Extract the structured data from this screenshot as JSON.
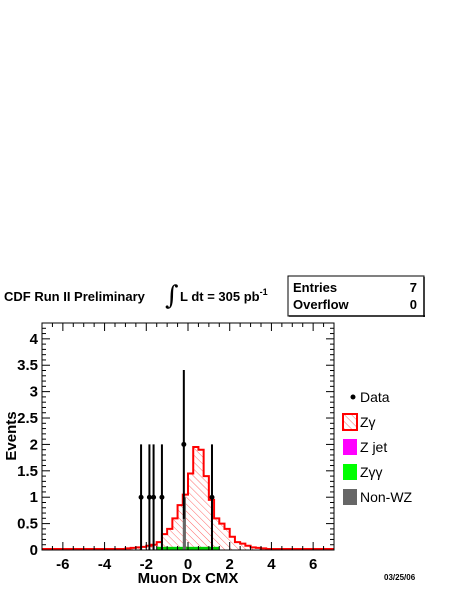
{
  "chart_data": {
    "type": "bar",
    "header": {
      "title": "CDF Run II Preliminary",
      "lumi_prefix": "L dt = 305 pb",
      "lumi_sup": "-1"
    },
    "stats": {
      "entries_label": "Entries",
      "entries_value": "7",
      "overflow_label": "Overflow",
      "overflow_value": "0"
    },
    "xlabel": "Muon Dx CMX",
    "ylabel": "Events",
    "xlim": [
      -7,
      7
    ],
    "ylim": [
      0,
      4.3
    ],
    "xticks": [
      -6,
      -4,
      -2,
      0,
      2,
      4,
      6
    ],
    "yticks": [
      0,
      0.5,
      1,
      1.5,
      2,
      2.5,
      3,
      3.5,
      4
    ],
    "ytick_labels": [
      "0",
      "0.5",
      "1",
      "1.5",
      "2",
      "2.5",
      "3",
      "3.5",
      "4"
    ],
    "legend_position": "right",
    "legend": [
      {
        "label": "Data",
        "style": "marker"
      },
      {
        "label": "Zγ",
        "style": "hatched",
        "color": "#ff0000"
      },
      {
        "label": "Z jet",
        "style": "fill",
        "color": "#ff00ff"
      },
      {
        "label": "Zγγ",
        "style": "fill",
        "color": "#00ff00"
      },
      {
        "label": "Non-WZ",
        "style": "fill",
        "color": "#666666"
      }
    ],
    "zgamma_hist": {
      "bin_width": 0.25,
      "edges_start": -3.0,
      "values": [
        0.03,
        0.04,
        0.05,
        0.06,
        0.08,
        0.1,
        0.15,
        0.3,
        0.4,
        0.6,
        0.85,
        1.05,
        1.45,
        1.95,
        1.9,
        1.4,
        0.95,
        0.6,
        0.5,
        0.4,
        0.25,
        0.15,
        0.12,
        0.08,
        0.05,
        0.04,
        0.03,
        0.02
      ]
    },
    "tail_level": 0.02,
    "other_bkg": {
      "color": "#00cc00",
      "values": [
        {
          "x_from": -1.5,
          "x_to": 1.5,
          "y": 0.06
        }
      ]
    },
    "nonwz_bar": {
      "x_from": -0.25,
      "x_to": -0.1,
      "y": 1.0,
      "color": "#666666"
    },
    "data_points": [
      {
        "x": -2.25,
        "y": 1.0,
        "err_lo": 1.0,
        "err_hi": 1.0
      },
      {
        "x": -1.85,
        "y": 1.0,
        "err_lo": 1.0,
        "err_hi": 1.0
      },
      {
        "x": -1.65,
        "y": 1.0,
        "err_lo": 1.0,
        "err_hi": 1.0
      },
      {
        "x": -1.25,
        "y": 1.0,
        "err_lo": 1.0,
        "err_hi": 1.0
      },
      {
        "x": -0.2,
        "y": 2.0,
        "err_lo": 1.41,
        "err_hi": 1.41
      },
      {
        "x": 1.15,
        "y": 1.0,
        "err_lo": 1.0,
        "err_hi": 1.0
      }
    ]
  },
  "footer": {
    "date": "03/25/06"
  }
}
